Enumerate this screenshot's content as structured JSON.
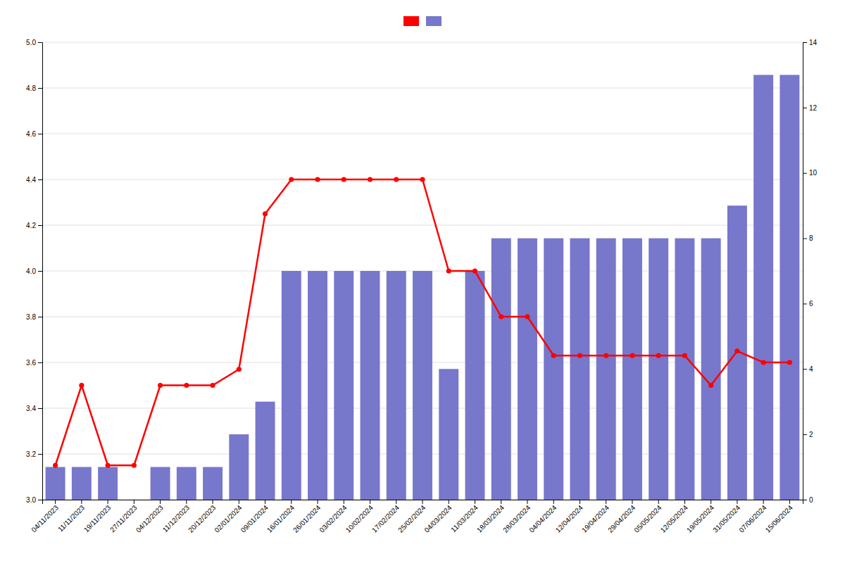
{
  "chart_data": {
    "type": "bar",
    "categories": [
      "04/11/2023",
      "11/11/2023",
      "19/11/2023",
      "27/11/2023",
      "04/12/2023",
      "11/12/2023",
      "20/12/2023",
      "02/01/2024",
      "09/01/2024",
      "16/01/2024",
      "26/01/2024",
      "03/02/2024",
      "10/02/2024",
      "17/02/2024",
      "25/02/2024",
      "04/03/2024",
      "11/03/2024",
      "18/03/2024",
      "28/03/2024",
      "04/04/2024",
      "12/04/2024",
      "19/04/2024",
      "29/04/2024",
      "05/05/2024",
      "12/05/2024",
      "19/05/2024",
      "31/05/2024",
      "07/06/2024",
      "15/06/2024"
    ],
    "series": [
      {
        "type": "line",
        "color": "#ff0000",
        "marker": "circle",
        "values": [
          3.15,
          3.5,
          3.15,
          3.15,
          3.5,
          3.5,
          3.5,
          3.57,
          4.25,
          4.4,
          4.4,
          4.4,
          4.4,
          4.4,
          4.4,
          4.0,
          4.0,
          3.8,
          3.8,
          3.63,
          3.63,
          3.63,
          3.63,
          3.63,
          3.63,
          3.5,
          3.65,
          3.6,
          3.6
        ]
      },
      {
        "type": "bar",
        "color": "#7777cc",
        "axis": "y2",
        "values": [
          1,
          1,
          1,
          0,
          1,
          1,
          1,
          2,
          3,
          7,
          7,
          7,
          7,
          7,
          7,
          4,
          7,
          8,
          8,
          8,
          8,
          8,
          8,
          8,
          8,
          8,
          9,
          13,
          13
        ]
      }
    ],
    "ylim": [
      3.0,
      5.0
    ],
    "yticks": [
      {
        "value": 3.0,
        "label": "3.0"
      },
      3.2,
      3.4,
      3.6,
      3.8,
      {
        "value": 4.0,
        "label": "4.0"
      },
      4.2,
      4.4,
      4.6,
      4.8,
      {
        "value": 5.0,
        "label": "5.0"
      }
    ],
    "y2lim": [
      0,
      14
    ],
    "y2ticks": [
      0,
      2,
      4,
      6,
      8,
      10,
      12,
      14
    ],
    "grid": true,
    "legend": "top"
  }
}
